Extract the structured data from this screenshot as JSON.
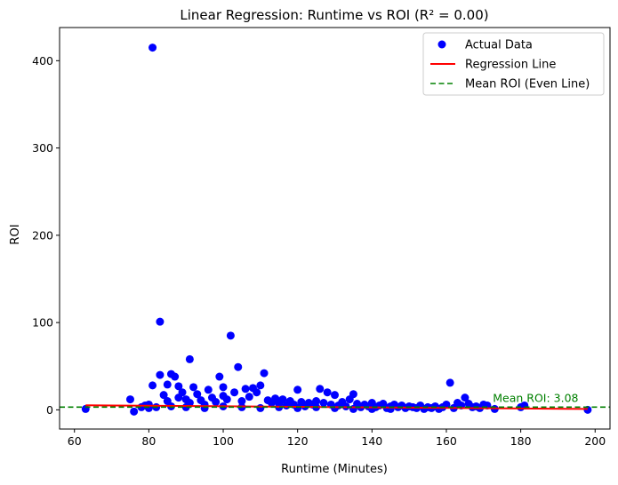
{
  "chart_data": {
    "type": "scatter",
    "title": "Linear Regression: Runtime vs ROI (R² = 0.00)",
    "xlabel": "Runtime (Minutes)",
    "ylabel": "ROI",
    "xlim": [
      56,
      204
    ],
    "ylim": [
      -22,
      438
    ],
    "xticks": [
      60,
      80,
      100,
      120,
      140,
      160,
      180,
      200
    ],
    "yticks": [
      0,
      100,
      200,
      300,
      400
    ],
    "grid": false,
    "legend_position": "top-right",
    "colors": {
      "scatter": "#0000ff",
      "regression": "#ff0000",
      "mean": "#008000"
    },
    "legend": [
      {
        "label": "Actual Data",
        "marker": "dot",
        "color": "#0000ff"
      },
      {
        "label": "Regression Line",
        "marker": "solid-line",
        "color": "#ff0000"
      },
      {
        "label": "Mean ROI (Even Line)",
        "marker": "dashed-line",
        "color": "#008000"
      }
    ],
    "series": [
      {
        "name": "Actual Data",
        "kind": "scatter",
        "points": [
          [
            63,
            1
          ],
          [
            75,
            12
          ],
          [
            76,
            -2
          ],
          [
            78,
            3
          ],
          [
            79,
            5
          ],
          [
            80,
            2
          ],
          [
            80,
            6
          ],
          [
            81,
            415
          ],
          [
            81,
            28
          ],
          [
            82,
            3
          ],
          [
            83,
            101
          ],
          [
            83,
            40
          ],
          [
            84,
            17
          ],
          [
            85,
            29
          ],
          [
            85,
            10
          ],
          [
            86,
            41
          ],
          [
            86,
            4
          ],
          [
            87,
            38
          ],
          [
            88,
            27
          ],
          [
            88,
            14
          ],
          [
            89,
            20
          ],
          [
            90,
            12
          ],
          [
            91,
            58
          ],
          [
            91,
            8
          ],
          [
            92,
            26
          ],
          [
            93,
            18
          ],
          [
            94,
            11
          ],
          [
            95,
            6
          ],
          [
            96,
            23
          ],
          [
            97,
            14
          ],
          [
            98,
            9
          ],
          [
            99,
            38
          ],
          [
            100,
            26
          ],
          [
            100,
            16
          ],
          [
            101,
            12
          ],
          [
            102,
            85
          ],
          [
            103,
            20
          ],
          [
            104,
            49
          ],
          [
            105,
            10
          ],
          [
            106,
            24
          ],
          [
            107,
            15
          ],
          [
            108,
            25
          ],
          [
            109,
            20
          ],
          [
            110,
            28
          ],
          [
            111,
            42
          ],
          [
            112,
            11
          ],
          [
            113,
            8
          ],
          [
            114,
            13
          ],
          [
            115,
            7
          ],
          [
            116,
            12
          ],
          [
            117,
            5
          ],
          [
            118,
            10
          ],
          [
            119,
            6
          ],
          [
            120,
            23
          ],
          [
            121,
            9
          ],
          [
            122,
            4
          ],
          [
            123,
            8
          ],
          [
            124,
            6
          ],
          [
            125,
            10
          ],
          [
            126,
            24
          ],
          [
            127,
            8
          ],
          [
            128,
            20
          ],
          [
            129,
            6
          ],
          [
            130,
            17
          ],
          [
            131,
            5
          ],
          [
            132,
            9
          ],
          [
            133,
            4
          ],
          [
            134,
            12
          ],
          [
            135,
            18
          ],
          [
            136,
            7
          ],
          [
            137,
            3
          ],
          [
            138,
            6
          ],
          [
            139,
            4
          ],
          [
            140,
            8
          ],
          [
            141,
            3
          ],
          [
            142,
            5
          ],
          [
            143,
            7
          ],
          [
            144,
            2
          ],
          [
            145,
            4
          ],
          [
            146,
            6
          ],
          [
            147,
            3
          ],
          [
            148,
            5
          ],
          [
            149,
            2
          ],
          [
            150,
            4
          ],
          [
            151,
            3
          ],
          [
            152,
            2
          ],
          [
            153,
            5
          ],
          [
            154,
            1
          ],
          [
            155,
            3
          ],
          [
            156,
            2
          ],
          [
            157,
            4
          ],
          [
            158,
            1
          ],
          [
            159,
            3
          ],
          [
            160,
            6
          ],
          [
            161,
            31
          ],
          [
            162,
            2
          ],
          [
            163,
            8
          ],
          [
            164,
            5
          ],
          [
            165,
            14
          ],
          [
            166,
            7
          ],
          [
            167,
            3
          ],
          [
            168,
            4
          ],
          [
            169,
            2
          ],
          [
            170,
            6
          ],
          [
            171,
            5
          ],
          [
            173,
            1
          ],
          [
            180,
            3
          ],
          [
            181,
            5
          ],
          [
            198,
            0
          ],
          [
            90,
            3
          ],
          [
            95,
            2
          ],
          [
            100,
            4
          ],
          [
            105,
            3
          ],
          [
            110,
            2
          ],
          [
            115,
            3
          ],
          [
            120,
            2
          ],
          [
            125,
            3
          ],
          [
            130,
            2
          ],
          [
            135,
            1
          ],
          [
            140,
            1
          ],
          [
            145,
            1
          ]
        ]
      },
      {
        "name": "Regression Line",
        "kind": "line",
        "x": [
          63,
          198
        ],
        "y": [
          5.2,
          1.0
        ]
      },
      {
        "name": "Mean ROI (Even Line)",
        "kind": "hline",
        "y": 3.08
      }
    ],
    "annotations": [
      {
        "text": "Mean ROI: 3.08",
        "x": 172.5,
        "y": 3.08,
        "color": "#008000"
      }
    ]
  }
}
